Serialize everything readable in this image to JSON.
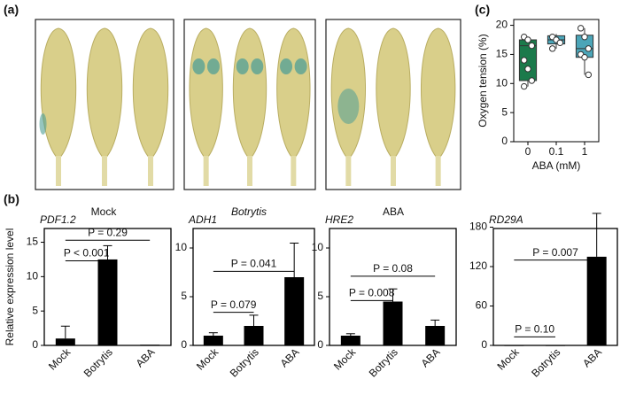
{
  "panel_labels": [
    "(a)",
    "(b)",
    "(c)"
  ],
  "photos": {
    "labels": [
      "Mock",
      "Botrytis",
      "ABA"
    ]
  },
  "shared_ylabel": "Relative expression level",
  "chart_data": [
    {
      "type": "box",
      "ylabel": "Oxygen tension (%)",
      "xlabel": "ABA (mM)",
      "categories": [
        "0",
        "0.1",
        "1"
      ],
      "colors": [
        "#1b7a4b",
        "#4ba5b8",
        "#4ba5b8"
      ],
      "min": [
        9.5,
        16,
        11.5
      ],
      "q1": [
        10.5,
        16.8,
        14.5
      ],
      "median": [
        16.5,
        17.5,
        16
      ],
      "q3": [
        17.5,
        18.2,
        18.3
      ],
      "max": [
        18,
        18.5,
        19.5
      ],
      "points": [
        [
          18,
          17.5,
          16.5,
          14,
          12.5,
          10.5,
          9.5
        ],
        [
          18,
          17.5,
          17,
          16
        ],
        [
          19.5,
          18,
          16,
          15,
          14.5,
          11.5
        ]
      ],
      "ylim": [
        0,
        21
      ],
      "yticks": [
        0,
        5,
        10,
        15,
        20
      ]
    },
    {
      "type": "bar",
      "title": "PDF1.2",
      "categories": [
        "Mock",
        "Botrytis",
        "ABA"
      ],
      "values": [
        1,
        12.5,
        0.1
      ],
      "errors": [
        1.8,
        2,
        0
      ],
      "color": "#000000",
      "ylim": [
        0,
        17
      ],
      "yticks": [
        0,
        5,
        10,
        15
      ],
      "annotations": [
        {
          "text": "P < 0.001",
          "span": [
            "Mock",
            "Botrytis"
          ],
          "y": 12.3
        },
        {
          "text": "P = 0.29",
          "span": [
            "Mock",
            "ABA"
          ],
          "y": 15.3
        }
      ]
    },
    {
      "type": "bar",
      "title": "ADH1",
      "categories": [
        "Mock",
        "Botrytis",
        "ABA"
      ],
      "values": [
        1,
        2,
        7
      ],
      "errors": [
        0.3,
        1.1,
        3.5
      ],
      "color": "#000000",
      "ylim": [
        0,
        12
      ],
      "yticks": [
        0,
        5,
        10
      ],
      "annotations": [
        {
          "text": "P = 0.079",
          "span": [
            "Mock",
            "Botrytis"
          ],
          "y": 3.4
        },
        {
          "text": "P = 0.041",
          "span": [
            "Mock",
            "ABA"
          ],
          "y": 7.6
        }
      ]
    },
    {
      "type": "bar",
      "title": "HRE2",
      "categories": [
        "Mock",
        "Botrytis",
        "ABA"
      ],
      "values": [
        1,
        4.5,
        2
      ],
      "errors": [
        0.2,
        1.3,
        0.6
      ],
      "color": "#000000",
      "ylim": [
        0,
        12
      ],
      "yticks": [
        0,
        5,
        10
      ],
      "annotations": [
        {
          "text": "P = 0.008",
          "span": [
            "Mock",
            "Botrytis"
          ],
          "y": 4.6
        },
        {
          "text": "P = 0.08",
          "span": [
            "Mock",
            "ABA"
          ],
          "y": 7.1
        }
      ]
    },
    {
      "type": "bar",
      "title": "RD29A",
      "categories": [
        "Mock",
        "Botrytis",
        "ABA"
      ],
      "values": [
        0.5,
        0.5,
        135
      ],
      "errors": [
        0,
        0,
        66
      ],
      "color": "#000000",
      "ylim": [
        0,
        178
      ],
      "yticks": [
        0,
        60,
        120,
        180
      ],
      "annotations": [
        {
          "text": "P = 0.10",
          "span": [
            "Mock",
            "Botrytis"
          ],
          "y": 13
        },
        {
          "text": "P = 0.007",
          "span": [
            "Mock",
            "ABA"
          ],
          "y": 130
        }
      ]
    }
  ]
}
